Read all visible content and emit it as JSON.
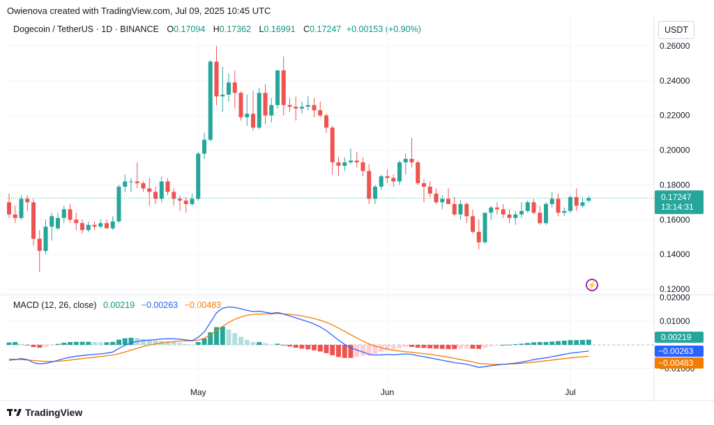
{
  "credit": "Owienova created with TradingView.com, Jul 09, 2025 10:45 UTC",
  "header": {
    "symbol": "Dogecoin / TetherUS · 1D · BINANCE",
    "o_label": "O",
    "o_value": "0.17094",
    "h_label": "H",
    "h_value": "0.17362",
    "l_label": "L",
    "l_value": "0.16991",
    "c_label": "C",
    "c_value": "0.17247",
    "change": "+0.00153 (+0.90%)"
  },
  "currency_button": "USDT",
  "price_tag": {
    "value": "0.17247",
    "countdown": "13:14:31"
  },
  "macd": {
    "title": "MACD (12, 26, close)",
    "hist": "0.00219",
    "macd": "−0.00263",
    "signal": "−0.00483"
  },
  "macd_tags": {
    "hist": "0.00219",
    "macd": "−0.00263",
    "signal": "−0.00483"
  },
  "brand": "TradingView",
  "colors": {
    "up": "#26a69a",
    "down": "#ef5350",
    "macd_line": "#2962ff",
    "signal_line": "#f57c00",
    "hist_up": "#26a69a",
    "hist_up_light": "#b2dfdb",
    "hist_down": "#ef5350",
    "hist_down_light": "#ffcdd2"
  },
  "chart_data": [
    {
      "type": "candlestick",
      "title": "Dogecoin / TetherUS",
      "y_ticks": [
        "0.26000",
        "0.24000",
        "0.22000",
        "0.20000",
        "0.18000",
        "0.16000",
        "0.14000",
        "0.12000"
      ],
      "ylim": [
        0.12,
        0.262
      ],
      "x_ticks": [
        {
          "label": "May",
          "index": 31
        },
        {
          "label": "Jun",
          "index": 62
        },
        {
          "label": "Jul",
          "index": 92
        }
      ],
      "ohlc": [
        [
          0.17,
          0.175,
          0.161,
          0.163
        ],
        [
          0.163,
          0.168,
          0.158,
          0.161
        ],
        [
          0.161,
          0.174,
          0.16,
          0.172
        ],
        [
          0.172,
          0.174,
          0.165,
          0.17
        ],
        [
          0.17,
          0.172,
          0.145,
          0.149
        ],
        [
          0.149,
          0.154,
          0.13,
          0.142
        ],
        [
          0.142,
          0.16,
          0.14,
          0.156
        ],
        [
          0.156,
          0.164,
          0.148,
          0.162
        ],
        [
          0.155,
          0.164,
          0.154,
          0.161
        ],
        [
          0.161,
          0.168,
          0.158,
          0.166
        ],
        [
          0.166,
          0.169,
          0.158,
          0.16
        ],
        [
          0.16,
          0.164,
          0.154,
          0.158
        ],
        [
          0.158,
          0.16,
          0.152,
          0.154
        ],
        [
          0.154,
          0.159,
          0.153,
          0.157
        ],
        [
          0.157,
          0.159,
          0.154,
          0.156
        ],
        [
          0.156,
          0.16,
          0.155,
          0.158
        ],
        [
          0.158,
          0.16,
          0.155,
          0.155
        ],
        [
          0.155,
          0.162,
          0.154,
          0.159
        ],
        [
          0.159,
          0.18,
          0.158,
          0.179
        ],
        [
          0.179,
          0.186,
          0.176,
          0.182
        ],
        [
          0.182,
          0.184,
          0.176,
          0.182
        ],
        [
          0.182,
          0.193,
          0.178,
          0.181
        ],
        [
          0.181,
          0.182,
          0.176,
          0.178
        ],
        [
          0.178,
          0.184,
          0.168,
          0.176
        ],
        [
          0.176,
          0.179,
          0.169,
          0.172
        ],
        [
          0.172,
          0.185,
          0.17,
          0.182
        ],
        [
          0.182,
          0.184,
          0.174,
          0.176
        ],
        [
          0.176,
          0.178,
          0.168,
          0.172
        ],
        [
          0.172,
          0.174,
          0.165,
          0.171
        ],
        [
          0.171,
          0.173,
          0.164,
          0.169
        ],
        [
          0.169,
          0.175,
          0.168,
          0.172
        ],
        [
          0.172,
          0.199,
          0.171,
          0.198
        ],
        [
          0.198,
          0.21,
          0.195,
          0.206
        ],
        [
          0.206,
          0.252,
          0.205,
          0.251
        ],
        [
          0.251,
          0.26,
          0.226,
          0.231
        ],
        [
          0.231,
          0.248,
          0.222,
          0.232
        ],
        [
          0.232,
          0.244,
          0.228,
          0.239
        ],
        [
          0.239,
          0.246,
          0.224,
          0.233
        ],
        [
          0.233,
          0.234,
          0.217,
          0.219
        ],
        [
          0.219,
          0.232,
          0.214,
          0.221
        ],
        [
          0.221,
          0.234,
          0.211,
          0.213
        ],
        [
          0.213,
          0.236,
          0.212,
          0.233
        ],
        [
          0.233,
          0.238,
          0.215,
          0.22
        ],
        [
          0.22,
          0.23,
          0.216,
          0.226
        ],
        [
          0.226,
          0.246,
          0.224,
          0.246
        ],
        [
          0.246,
          0.254,
          0.22,
          0.226
        ],
        [
          0.226,
          0.23,
          0.222,
          0.225
        ],
        [
          0.225,
          0.231,
          0.217,
          0.224
        ],
        [
          0.224,
          0.228,
          0.221,
          0.225
        ],
        [
          0.225,
          0.231,
          0.223,
          0.226
        ],
        [
          0.226,
          0.23,
          0.219,
          0.223
        ],
        [
          0.223,
          0.228,
          0.219,
          0.22
        ],
        [
          0.22,
          0.221,
          0.21,
          0.213
        ],
        [
          0.213,
          0.214,
          0.186,
          0.193
        ],
        [
          0.193,
          0.196,
          0.185,
          0.191
        ],
        [
          0.191,
          0.196,
          0.188,
          0.193
        ],
        [
          0.193,
          0.201,
          0.192,
          0.194
        ],
        [
          0.194,
          0.199,
          0.19,
          0.193
        ],
        [
          0.193,
          0.196,
          0.185,
          0.188
        ],
        [
          0.188,
          0.192,
          0.169,
          0.172
        ],
        [
          0.172,
          0.18,
          0.169,
          0.179
        ],
        [
          0.179,
          0.186,
          0.177,
          0.185
        ],
        [
          0.185,
          0.189,
          0.181,
          0.184
        ],
        [
          0.184,
          0.186,
          0.179,
          0.182
        ],
        [
          0.182,
          0.194,
          0.18,
          0.193
        ],
        [
          0.193,
          0.198,
          0.186,
          0.195
        ],
        [
          0.195,
          0.207,
          0.19,
          0.193
        ],
        [
          0.193,
          0.194,
          0.18,
          0.181
        ],
        [
          0.181,
          0.183,
          0.17,
          0.179
        ],
        [
          0.179,
          0.182,
          0.173,
          0.175
        ],
        [
          0.175,
          0.178,
          0.169,
          0.17
        ],
        [
          0.17,
          0.174,
          0.166,
          0.172
        ],
        [
          0.172,
          0.178,
          0.169,
          0.169
        ],
        [
          0.169,
          0.173,
          0.162,
          0.163
        ],
        [
          0.163,
          0.171,
          0.16,
          0.169
        ],
        [
          0.169,
          0.17,
          0.158,
          0.162
        ],
        [
          0.162,
          0.166,
          0.152,
          0.153
        ],
        [
          0.153,
          0.16,
          0.143,
          0.147
        ],
        [
          0.147,
          0.164,
          0.146,
          0.164
        ],
        [
          0.164,
          0.168,
          0.16,
          0.167
        ],
        [
          0.167,
          0.17,
          0.163,
          0.166
        ],
        [
          0.166,
          0.169,
          0.161,
          0.163
        ],
        [
          0.163,
          0.166,
          0.158,
          0.161
        ],
        [
          0.161,
          0.165,
          0.157,
          0.163
        ],
        [
          0.163,
          0.17,
          0.161,
          0.165
        ],
        [
          0.165,
          0.171,
          0.164,
          0.17
        ],
        [
          0.17,
          0.172,
          0.163,
          0.164
        ],
        [
          0.164,
          0.168,
          0.157,
          0.158
        ],
        [
          0.158,
          0.17,
          0.157,
          0.169
        ],
        [
          0.169,
          0.176,
          0.167,
          0.172
        ],
        [
          0.172,
          0.175,
          0.162,
          0.164
        ],
        [
          0.164,
          0.167,
          0.162,
          0.165
        ],
        [
          0.165,
          0.174,
          0.164,
          0.173
        ],
        [
          0.173,
          0.178,
          0.165,
          0.168
        ],
        [
          0.168,
          0.173,
          0.167,
          0.17
        ],
        [
          0.17094,
          0.17362,
          0.16991,
          0.17247
        ]
      ]
    },
    {
      "type": "line",
      "title": "MACD (12, 26, close)",
      "y_ticks": [
        "0.02000",
        "0.01000",
        "−0.01000"
      ],
      "ylim": [
        -0.0125,
        0.02
      ],
      "series": [
        {
          "name": "MACD",
          "values": [
            -0.0065,
            -0.0062,
            -0.0058,
            -0.0062,
            -0.0075,
            -0.008,
            -0.0078,
            -0.0072,
            -0.0065,
            -0.0058,
            -0.0052,
            -0.0048,
            -0.0045,
            -0.0042,
            -0.004,
            -0.0038,
            -0.0035,
            -0.003,
            -0.0015,
            -0.0002,
            0.0008,
            0.0015,
            0.0018,
            0.002,
            0.0022,
            0.0025,
            0.0026,
            0.0026,
            0.0024,
            0.0021,
            0.0018,
            0.0032,
            0.0055,
            0.0095,
            0.0135,
            0.0155,
            0.016,
            0.0158,
            0.0152,
            0.0146,
            0.014,
            0.0142,
            0.0138,
            0.0133,
            0.0137,
            0.013,
            0.0122,
            0.0114,
            0.0106,
            0.0098,
            0.0088,
            0.0076,
            0.006,
            0.004,
            0.002,
            0.0002,
            -0.0012,
            -0.0022,
            -0.003,
            -0.004,
            -0.0043,
            -0.0042,
            -0.004,
            -0.0042,
            -0.004,
            -0.0038,
            -0.004,
            -0.0046,
            -0.005,
            -0.0055,
            -0.006,
            -0.0065,
            -0.007,
            -0.0075,
            -0.0078,
            -0.0082,
            -0.0088,
            -0.0095,
            -0.0092,
            -0.0088,
            -0.0085,
            -0.0082,
            -0.008,
            -0.0077,
            -0.0073,
            -0.0068,
            -0.0062,
            -0.0058,
            -0.0055,
            -0.005,
            -0.0045,
            -0.004,
            -0.0035,
            -0.0032,
            -0.0029,
            -0.00263
          ]
        },
        {
          "name": "Signal",
          "values": [
            -0.006,
            -0.0061,
            -0.0062,
            -0.0064,
            -0.0066,
            -0.0068,
            -0.007,
            -0.007,
            -0.0069,
            -0.0067,
            -0.0064,
            -0.0061,
            -0.0058,
            -0.0055,
            -0.0052,
            -0.0049,
            -0.0046,
            -0.0043,
            -0.0037,
            -0.003,
            -0.0022,
            -0.0014,
            -0.0007,
            -0.0001,
            0.0004,
            0.0008,
            0.0011,
            0.0014,
            0.0016,
            0.0017,
            0.0017,
            0.002,
            0.0028,
            0.0042,
            0.006,
            0.0078,
            0.0095,
            0.0108,
            0.0118,
            0.0125,
            0.0128,
            0.013,
            0.0131,
            0.0131,
            0.0132,
            0.0131,
            0.0129,
            0.0126,
            0.0122,
            0.0117,
            0.0111,
            0.0104,
            0.0095,
            0.0084,
            0.0071,
            0.0057,
            0.0043,
            0.0029,
            0.0016,
            0.0004,
            -0.0005,
            -0.0012,
            -0.0018,
            -0.0023,
            -0.0026,
            -0.0029,
            -0.0031,
            -0.0034,
            -0.0037,
            -0.004,
            -0.0044,
            -0.0048,
            -0.0052,
            -0.0057,
            -0.0062,
            -0.0067,
            -0.0072,
            -0.0078,
            -0.008,
            -0.0082,
            -0.0082,
            -0.0082,
            -0.0081,
            -0.008,
            -0.0078,
            -0.0076,
            -0.0073,
            -0.007,
            -0.0067,
            -0.0064,
            -0.0061,
            -0.0058,
            -0.0055,
            -0.0052,
            -0.005,
            -0.00483
          ]
        },
        {
          "name": "Histogram",
          "values": [
            0.001,
            0.0012,
            0.0004,
            -0.0002,
            -0.0009,
            -0.0012,
            -0.0008,
            -0.0002,
            0.0004,
            0.0009,
            0.0012,
            0.0013,
            0.0013,
            0.0013,
            0.0012,
            0.0011,
            0.0011,
            0.0013,
            0.0022,
            0.0028,
            0.003,
            0.0029,
            0.0025,
            0.0021,
            0.0018,
            0.0017,
            0.0015,
            0.0012,
            0.0008,
            0.0004,
            0.0001,
            0.0012,
            0.0027,
            0.0053,
            0.0075,
            0.0077,
            0.0065,
            0.005,
            0.0034,
            0.0021,
            0.0012,
            0.0012,
            0.0007,
            0.0002,
            0.0005,
            -0.0001,
            -0.0007,
            -0.0012,
            -0.0016,
            -0.0019,
            -0.0023,
            -0.0028,
            -0.0035,
            -0.0044,
            -0.0051,
            -0.0055,
            -0.0055,
            -0.0051,
            -0.0046,
            -0.0044,
            -0.0038,
            -0.003,
            -0.0022,
            -0.0019,
            -0.0014,
            -0.0009,
            -0.0009,
            -0.0012,
            -0.0013,
            -0.0015,
            -0.0016,
            -0.0017,
            -0.0018,
            -0.0018,
            -0.0016,
            -0.0015,
            -0.0016,
            -0.0017,
            -0.0012,
            -0.0006,
            -0.0003,
            0.0,
            0.0001,
            0.0003,
            0.0005,
            0.0008,
            0.0011,
            0.0012,
            0.0012,
            0.0014,
            0.0016,
            0.0018,
            0.002,
            0.002,
            0.0021,
            0.00219
          ]
        }
      ],
      "x_ticks": [
        {
          "label": "May",
          "index": 31
        },
        {
          "label": "Jun",
          "index": 62
        },
        {
          "label": "Jul",
          "index": 92
        }
      ]
    }
  ]
}
